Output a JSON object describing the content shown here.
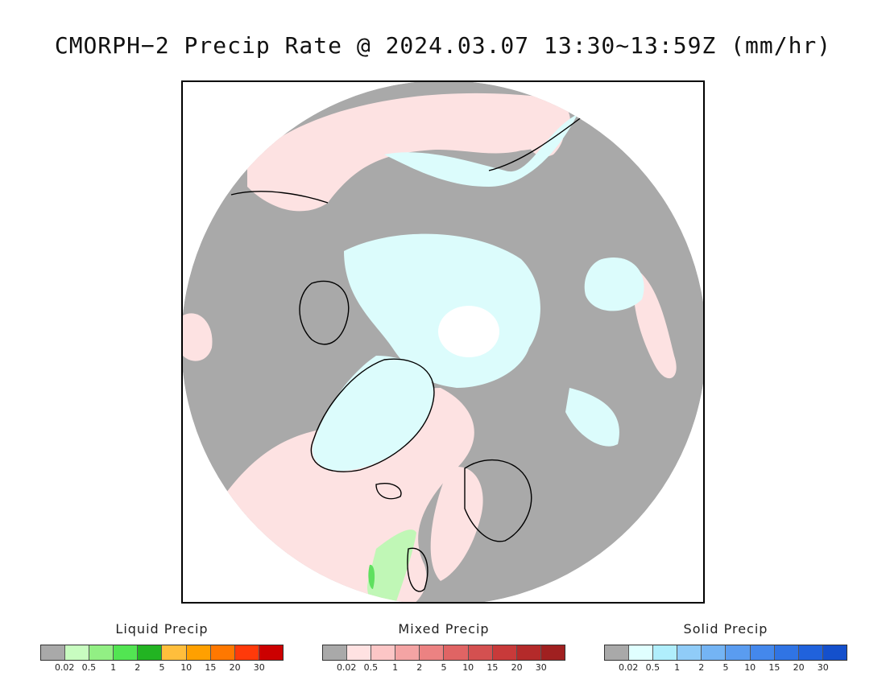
{
  "title": "CMORPH−2 Precip Rate @ 2024.03.07 13:30~13:59Z (mm/hr)",
  "legends": [
    {
      "title": "Liquid Precip",
      "colors": [
        "#a9a9a9",
        "#c8fcc0",
        "#92ef84",
        "#52e552",
        "#22b422",
        "#ffbe3c",
        "#ffa000",
        "#ff7800",
        "#ff3a0a",
        "#cc0000"
      ],
      "ticks": [
        "0.02",
        "0.5",
        "1",
        "2",
        "5",
        "10",
        "15",
        "20",
        "30"
      ]
    },
    {
      "title": "Mixed Precip",
      "colors": [
        "#a9a9a9",
        "#ffe2e2",
        "#fcc6c6",
        "#f4a4a4",
        "#ec8282",
        "#e06464",
        "#d45050",
        "#c83a3a",
        "#b42a2a",
        "#a02020"
      ],
      "ticks": [
        "0.02",
        "0.5",
        "1",
        "2",
        "5",
        "10",
        "15",
        "20",
        "30"
      ]
    },
    {
      "title": "Solid Precip",
      "colors": [
        "#a9a9a9",
        "#e0ffff",
        "#b0eefc",
        "#90ccf8",
        "#74b4f4",
        "#5a9cf0",
        "#4488ec",
        "#3074e4",
        "#2062dc",
        "#1450cc"
      ],
      "ticks": [
        "0.02",
        "0.5",
        "1",
        "2",
        "5",
        "10",
        "15",
        "20",
        "30"
      ]
    }
  ],
  "map_colors": {
    "no_precip": "#a9a9a9",
    "mixed_light": "#fde2e2",
    "solid_light": "#dcfcfc",
    "liquid_light": "#c0f7b6",
    "liquid_mid": "#5fe05f",
    "polar_gap": "#ffffff"
  }
}
